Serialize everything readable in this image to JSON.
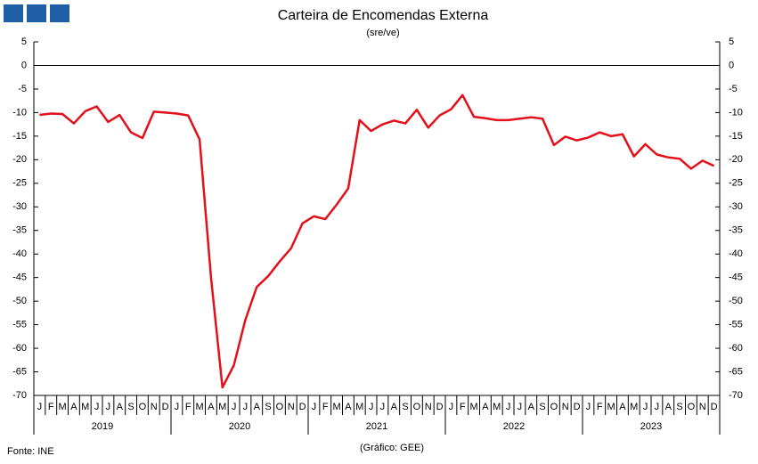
{
  "chart_data": {
    "type": "line",
    "title": "Carteira de Encomendas Externa",
    "subtitle": "(sre/ve)",
    "source": "Fonte: INE",
    "credit": "(Gráfico: GEE)",
    "categories": [
      "J",
      "F",
      "M",
      "A",
      "M",
      "J",
      "J",
      "A",
      "S",
      "O",
      "N",
      "D",
      "J",
      "F",
      "M",
      "A",
      "M",
      "J",
      "J",
      "A",
      "S",
      "O",
      "N",
      "D",
      "J",
      "F",
      "M",
      "A",
      "M",
      "J",
      "J",
      "A",
      "S",
      "O",
      "N",
      "D",
      "J",
      "F",
      "M",
      "A",
      "M",
      "J",
      "J",
      "A",
      "S",
      "O",
      "N",
      "D",
      "J",
      "F",
      "M",
      "A",
      "M",
      "J",
      "J",
      "A",
      "S",
      "O",
      "N",
      "D"
    ],
    "years": [
      "2019",
      "2020",
      "2021",
      "2022",
      "2023"
    ],
    "series": [
      {
        "color": "#e3101a",
        "values": [
          -10.5,
          -10.2,
          -10.3,
          -12.3,
          -9.7,
          -8.7,
          -12,
          -10.5,
          -14.2,
          -15.4,
          -9.8,
          -10,
          -10.2,
          -10.6,
          -15.7,
          -45,
          -68.3,
          -63.6,
          -54,
          -47,
          -44.7,
          -41.6,
          -38.8,
          -33.5,
          -32,
          -32.6,
          -29.5,
          -26.1,
          -11.6,
          -13.9,
          -12.5,
          -11.7,
          -12.3,
          -9.4,
          -13.2,
          -10.6,
          -9.3,
          -6.3,
          -10.9,
          -11.2,
          -11.6,
          -11.6,
          -11.3,
          -11,
          -11.3,
          -16.9,
          -15.1,
          -15.9,
          -15.3,
          -14.2,
          -15,
          -14.6,
          -19.3,
          -16.7,
          -18.9,
          -19.5,
          -19.8,
          -21.9,
          -20.2,
          -21.3
        ]
      }
    ],
    "ylim": [
      -70,
      5
    ],
    "yticks": [
      5,
      0,
      -5,
      -10,
      -15,
      -20,
      -25,
      -30,
      -35,
      -40,
      -45,
      -50,
      -55,
      -60,
      -65,
      -70
    ],
    "y2lim": [
      -70,
      5
    ],
    "y2ticks": [
      5,
      0,
      -5,
      -10,
      -15,
      -20,
      -25,
      -30,
      -35,
      -40,
      -45,
      -50,
      -55,
      -60,
      -65,
      -70
    ],
    "grid": false
  }
}
